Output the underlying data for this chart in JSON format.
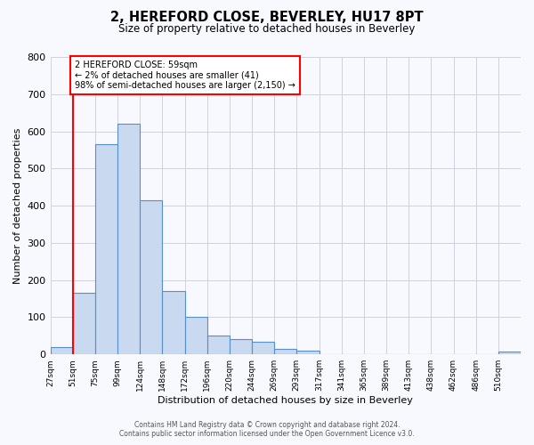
{
  "title": "2, HEREFORD CLOSE, BEVERLEY, HU17 8PT",
  "subtitle": "Size of property relative to detached houses in Beverley",
  "xlabel": "Distribution of detached houses by size in Beverley",
  "ylabel": "Number of detached properties",
  "bin_labels": [
    "27sqm",
    "51sqm",
    "75sqm",
    "99sqm",
    "124sqm",
    "148sqm",
    "172sqm",
    "196sqm",
    "220sqm",
    "244sqm",
    "269sqm",
    "293sqm",
    "317sqm",
    "341sqm",
    "365sqm",
    "389sqm",
    "413sqm",
    "438sqm",
    "462sqm",
    "486sqm",
    "510sqm"
  ],
  "bar_heights": [
    20,
    165,
    565,
    620,
    415,
    170,
    100,
    50,
    40,
    35,
    15,
    10,
    0,
    0,
    0,
    0,
    0,
    0,
    0,
    0,
    8
  ],
  "bar_color": "#c8d9f0",
  "bar_edge_color": "#5590cc",
  "red_line_x": 1,
  "annotation_lines": [
    "2 HEREFORD CLOSE: 59sqm",
    "← 2% of detached houses are smaller (41)",
    "98% of semi-detached houses are larger (2,150) →"
  ],
  "annotation_box_color": "white",
  "annotation_box_edge": "red",
  "red_line_color": "red",
  "ylim": [
    0,
    800
  ],
  "yticks": [
    0,
    100,
    200,
    300,
    400,
    500,
    600,
    700,
    800
  ],
  "footer_line1": "Contains HM Land Registry data © Crown copyright and database right 2024.",
  "footer_line2": "Contains public sector information licensed under the Open Government Licence v3.0.",
  "bg_color": "#f8f8ff",
  "grid_color": "#d0d0e0",
  "figsize": [
    6.0,
    5.0
  ],
  "dpi": 100
}
